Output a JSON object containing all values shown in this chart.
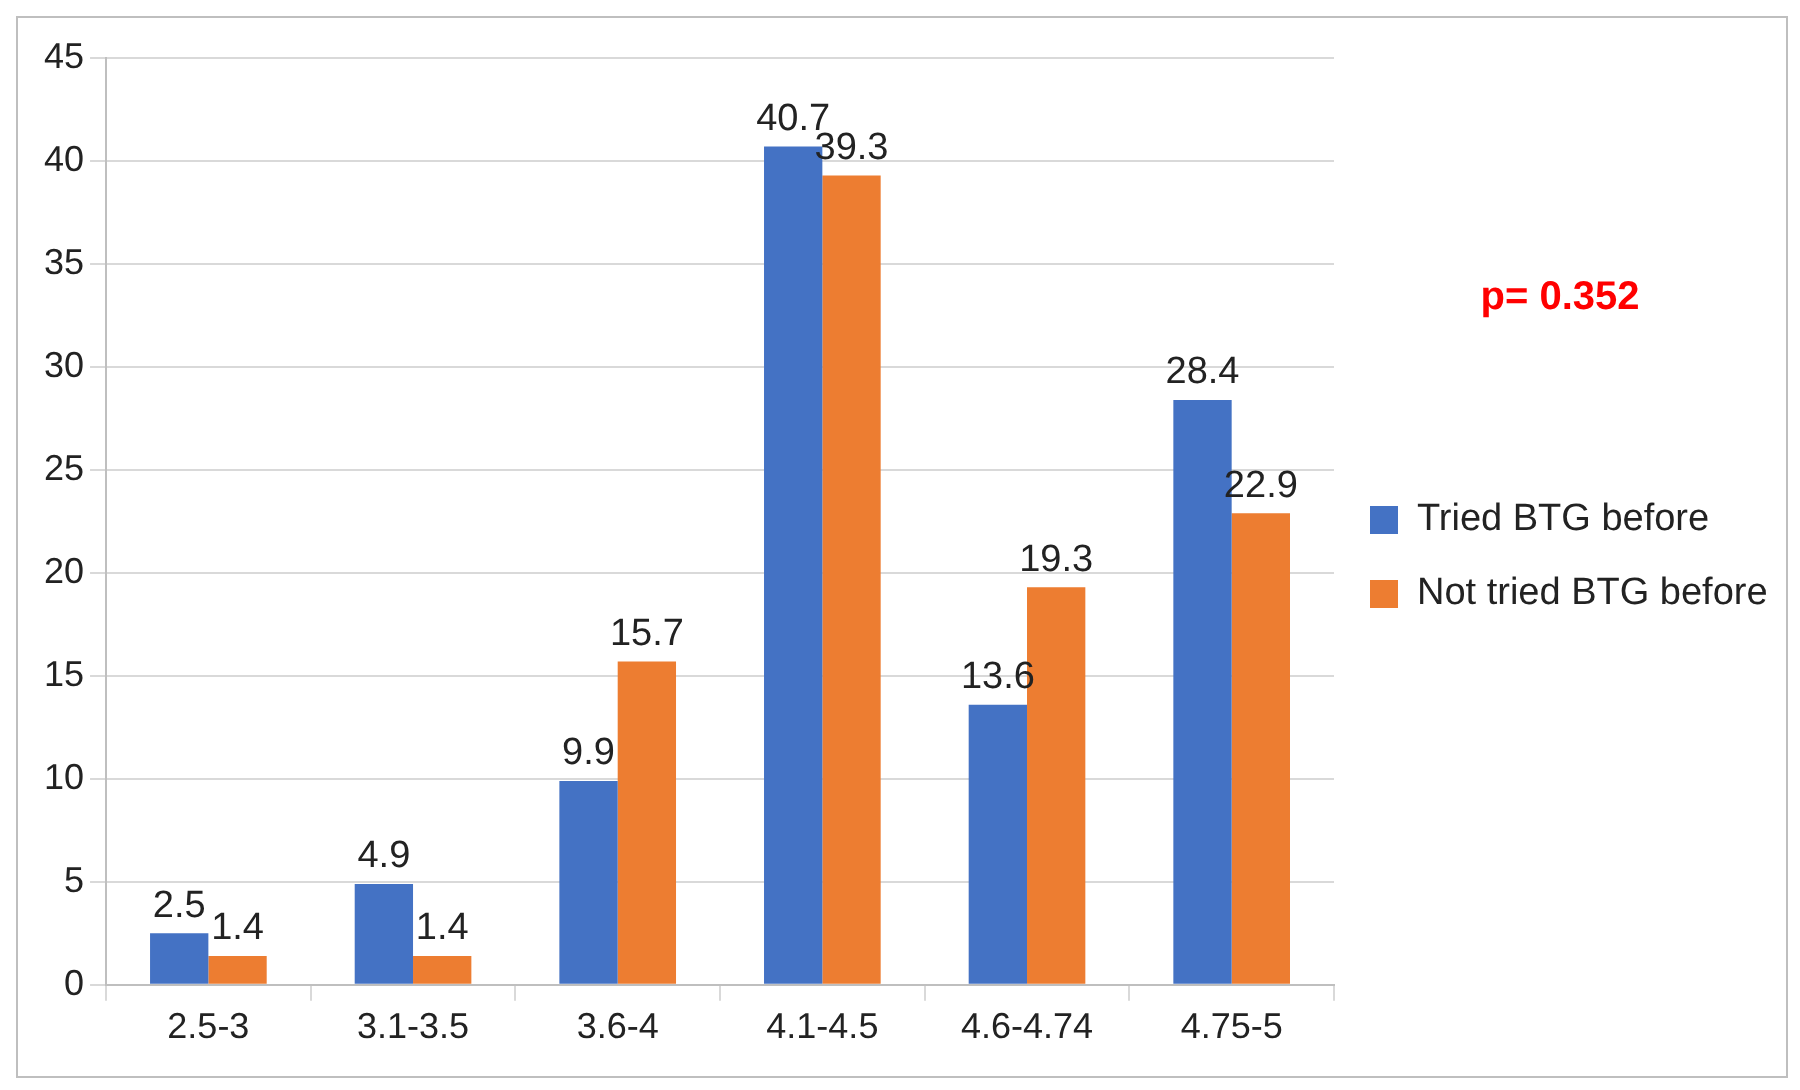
{
  "chart_data": {
    "type": "bar",
    "categories": [
      "2.5-3",
      "3.1-3.5",
      "3.6-4",
      "4.1-4.5",
      "4.6-4.74",
      "4.75-5"
    ],
    "series": [
      {
        "name": "Tried BTG before",
        "color": "#4472c4",
        "values": [
          2.5,
          4.9,
          9.9,
          40.7,
          13.6,
          28.4
        ]
      },
      {
        "name": "Not tried BTG before",
        "color": "#ed7d31",
        "values": [
          1.4,
          1.4,
          15.7,
          39.3,
          19.3,
          22.9
        ]
      }
    ],
    "ylim": [
      0,
      45
    ],
    "yticks": [
      0,
      5,
      10,
      15,
      20,
      25,
      30,
      35,
      40,
      45
    ],
    "grid": "y",
    "legend": "right",
    "data_labels": true,
    "annotations": [
      "p= 0.352"
    ]
  }
}
